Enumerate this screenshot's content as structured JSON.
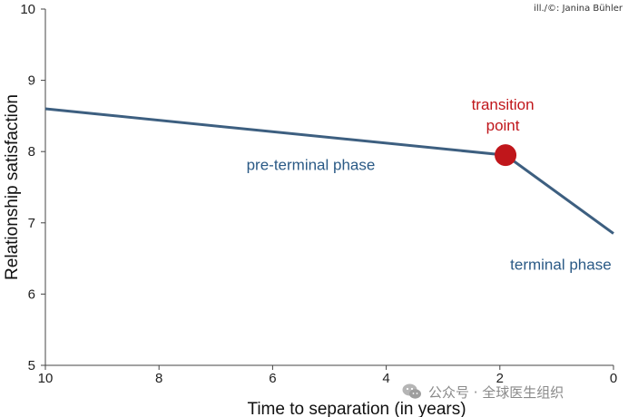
{
  "credit": "ill./©: Janina Bühler",
  "watermark": {
    "icon": "wechat-icon",
    "text": "公众号 · 全球医生组织"
  },
  "colors": {
    "line": "#3d5f80",
    "marker": "#c0161b",
    "phase_text": "#2b5a86",
    "transition_text": "#c0161b",
    "axis": "#444444"
  },
  "chart_data": {
    "type": "line",
    "xlabel": "Time to separation (in years)",
    "ylabel": "Relationship satisfaction",
    "xlim": [
      10,
      0
    ],
    "ylim": [
      5,
      10
    ],
    "x_reversed": true,
    "x_ticks": [
      10,
      8,
      6,
      4,
      2,
      0
    ],
    "y_ticks": [
      5,
      6,
      7,
      8,
      9,
      10
    ],
    "grid": false,
    "series": [
      {
        "x": [
          10,
          1.9,
          0
        ],
        "y": [
          8.6,
          7.95,
          6.85
        ]
      }
    ],
    "transition_point": {
      "x": 1.9,
      "y": 7.95,
      "label_lines": [
        "transition",
        "point"
      ]
    },
    "annotations": [
      {
        "text": "pre-terminal phase",
        "x": 5.2,
        "y": 7.82
      },
      {
        "text": "terminal phase",
        "x": 0.8,
        "y": 6.42
      }
    ]
  }
}
